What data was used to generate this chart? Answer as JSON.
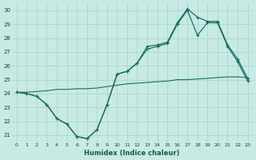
{
  "xlabel": "Humidex (Indice chaleur)",
  "bg_color": "#c8eae4",
  "grid_color": "#b0d8d0",
  "line_color": "#1a6e60",
  "xlim": [
    -0.5,
    23.5
  ],
  "ylim": [
    20.5,
    30.5
  ],
  "xticks": [
    0,
    1,
    2,
    3,
    4,
    5,
    6,
    7,
    8,
    9,
    10,
    11,
    12,
    13,
    14,
    15,
    16,
    17,
    18,
    19,
    20,
    21,
    22,
    23
  ],
  "yticks": [
    21,
    22,
    23,
    24,
    25,
    26,
    27,
    28,
    29,
    30
  ],
  "line1_x": [
    0,
    1,
    2,
    3,
    4,
    5,
    6,
    7,
    8,
    9,
    10,
    11,
    12,
    13,
    14,
    15,
    16,
    17,
    18,
    19,
    20,
    21,
    22,
    23
  ],
  "line1_y": [
    24.1,
    24.0,
    23.8,
    23.2,
    22.2,
    21.8,
    20.9,
    20.75,
    21.4,
    23.2,
    25.4,
    25.6,
    26.2,
    27.4,
    27.5,
    27.7,
    29.1,
    30.1,
    29.5,
    29.2,
    29.2,
    27.5,
    26.5,
    25.1
  ],
  "line2_x": [
    0,
    1,
    2,
    3,
    4,
    5,
    6,
    7,
    8,
    9,
    10,
    11,
    12,
    13,
    14,
    15,
    16,
    17,
    18,
    19,
    20,
    21,
    22,
    23
  ],
  "line2_y": [
    24.1,
    24.0,
    23.8,
    23.2,
    22.2,
    21.8,
    20.9,
    20.75,
    21.4,
    23.2,
    25.4,
    25.6,
    26.2,
    27.2,
    27.4,
    27.6,
    29.0,
    30.0,
    28.2,
    29.1,
    29.1,
    27.4,
    26.3,
    24.9
  ],
  "line3_x": [
    0,
    1,
    2,
    3,
    4,
    5,
    6,
    7,
    8,
    9,
    10,
    11,
    12,
    13,
    14,
    15,
    16,
    17,
    18,
    19,
    20,
    21,
    22,
    23
  ],
  "line3_y": [
    24.1,
    24.1,
    24.15,
    24.2,
    24.3,
    24.3,
    24.35,
    24.35,
    24.4,
    24.5,
    24.6,
    24.7,
    24.75,
    24.8,
    24.85,
    24.9,
    25.0,
    25.0,
    25.05,
    25.1,
    25.15,
    25.2,
    25.2,
    25.15
  ]
}
